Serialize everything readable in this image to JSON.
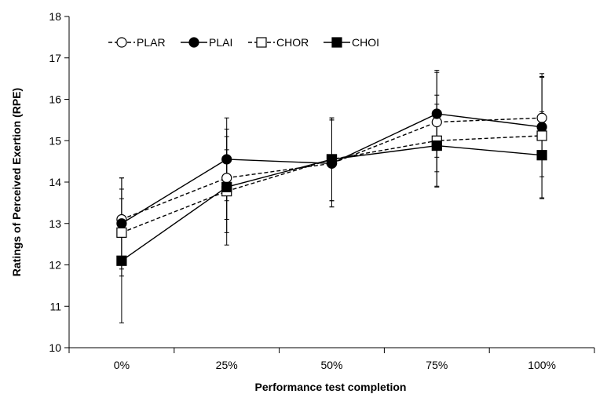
{
  "chart_data": {
    "type": "line",
    "xlabel": "Performance test completion",
    "ylabel": "Ratings of Perceived Exertion (RPE)",
    "categories": [
      "0%",
      "25%",
      "50%",
      "75%",
      "100%"
    ],
    "ylim": [
      10,
      18
    ],
    "yticks": [
      10,
      11,
      12,
      13,
      14,
      15,
      16,
      17,
      18
    ],
    "grid": false,
    "legend_position": "top-left",
    "series": [
      {
        "name": "PLAR",
        "marker": "open-circle",
        "line": "dashed",
        "color": "#000000",
        "values": [
          13.1,
          14.1,
          14.45,
          15.45,
          15.55
        ],
        "errors": [
          1.0,
          1.0,
          1.05,
          1.2,
          1.0
        ]
      },
      {
        "name": "PLAI",
        "marker": "filled-circle",
        "line": "solid",
        "color": "#000000",
        "values": [
          13.0,
          14.55,
          14.45,
          15.65,
          15.33
        ],
        "errors": [
          1.1,
          1.0,
          1.05,
          1.05,
          1.2
        ]
      },
      {
        "name": "CHOR",
        "marker": "open-square",
        "line": "dashed",
        "color": "#000000",
        "values": [
          12.78,
          13.78,
          14.55,
          15.0,
          15.12
        ],
        "errors": [
          1.05,
          1.0,
          1.0,
          1.1,
          1.5
        ]
      },
      {
        "name": "CHOI",
        "marker": "filled-square",
        "line": "solid",
        "color": "#000000",
        "values": [
          12.1,
          13.88,
          14.55,
          14.88,
          14.65
        ],
        "errors": [
          1.5,
          1.4,
          1.0,
          1.0,
          1.05
        ]
      }
    ]
  }
}
